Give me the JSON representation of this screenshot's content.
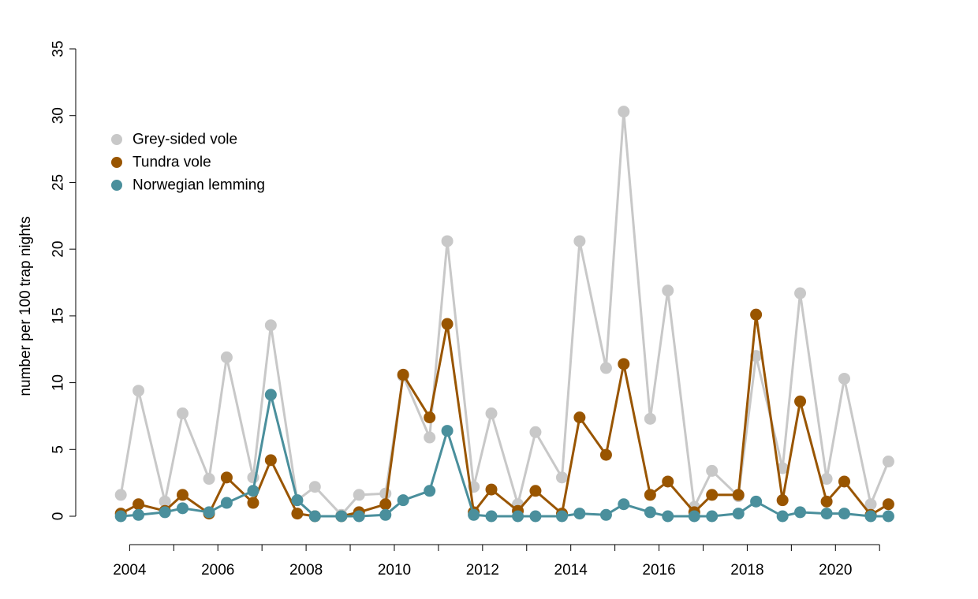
{
  "chart_data": {
    "type": "line",
    "title": "",
    "xlabel": "",
    "ylabel": "number per 100 trap nights",
    "xlim": [
      2003.6,
      2021.3
    ],
    "ylim": [
      0,
      35
    ],
    "x_ticks": [
      2004,
      2005,
      2006,
      2007,
      2008,
      2009,
      2010,
      2011,
      2012,
      2013,
      2014,
      2015,
      2016,
      2017,
      2018,
      2019,
      2020,
      2021
    ],
    "x_tick_labels": [
      "2004",
      "",
      "2006",
      "",
      "2008",
      "",
      "2010",
      "",
      "2012",
      "",
      "2014",
      "",
      "2016",
      "",
      "2018",
      "",
      "2020",
      ""
    ],
    "y_ticks": [
      0,
      5,
      10,
      15,
      20,
      25,
      30,
      35
    ],
    "y_tick_labels": [
      "0",
      "5",
      "10",
      "15",
      "20",
      "25",
      "30",
      "35"
    ],
    "grid": false,
    "legend_position": "top-left",
    "x": [
      2003.8,
      2004.2,
      2004.8,
      2005.2,
      2005.8,
      2006.2,
      2006.8,
      2007.2,
      2007.8,
      2008.2,
      2008.8,
      2009.2,
      2009.8,
      2010.2,
      2010.8,
      2011.2,
      2011.8,
      2012.2,
      2012.8,
      2013.2,
      2013.8,
      2014.2,
      2014.8,
      2015.2,
      2015.8,
      2016.2,
      2016.8,
      2017.2,
      2017.8,
      2018.2,
      2018.8,
      2019.2,
      2019.8,
      2020.2,
      2020.8,
      2021.2
    ],
    "series": [
      {
        "name": "Grey-sided vole",
        "color": "#c8c8c8",
        "values": [
          1.6,
          9.4,
          1.1,
          7.7,
          2.8,
          11.9,
          2.9,
          14.3,
          1.2,
          2.2,
          0.1,
          1.6,
          1.7,
          10.5,
          5.9,
          20.6,
          2.2,
          7.7,
          0.9,
          6.3,
          2.9,
          20.6,
          11.1,
          30.3,
          7.3,
          16.9,
          0.7,
          3.4,
          1.5,
          12.0,
          3.6,
          16.7,
          2.8,
          10.3,
          0.9,
          4.1
        ]
      },
      {
        "name": "Tundra vole",
        "color": "#995500",
        "values": [
          0.2,
          0.9,
          0.4,
          1.6,
          0.2,
          2.9,
          1.0,
          4.2,
          0.2,
          0.0,
          0.0,
          0.3,
          0.9,
          10.6,
          7.4,
          14.4,
          0.3,
          2.0,
          0.4,
          1.9,
          0.2,
          7.4,
          4.6,
          11.4,
          1.6,
          2.6,
          0.3,
          1.6,
          1.6,
          15.1,
          1.2,
          8.6,
          1.1,
          2.6,
          0.1,
          0.9
        ]
      },
      {
        "name": "Norwegian lemming",
        "color": "#4a8f9c",
        "values": [
          0.0,
          0.1,
          0.3,
          0.6,
          0.3,
          1.0,
          1.9,
          9.1,
          1.2,
          0.0,
          0.0,
          0.0,
          0.1,
          1.2,
          1.9,
          6.4,
          0.1,
          0.0,
          0.0,
          0.0,
          0.0,
          0.2,
          0.1,
          0.9,
          0.3,
          0.0,
          0.0,
          0.0,
          0.2,
          1.1,
          0.0,
          0.3,
          0.2,
          0.2,
          0.0,
          0.0
        ]
      }
    ]
  }
}
